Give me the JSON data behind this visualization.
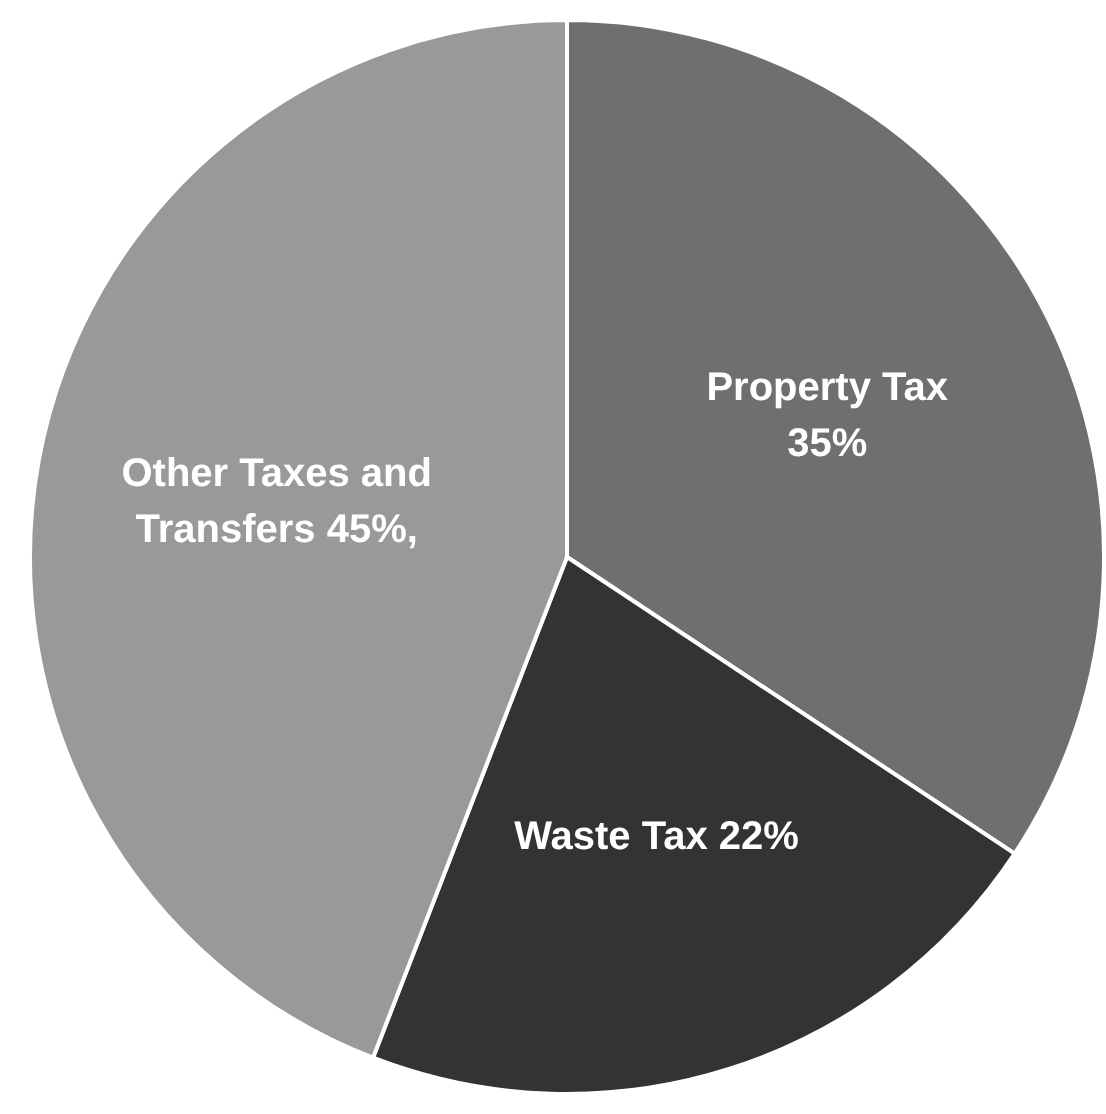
{
  "chart_data": {
    "type": "pie",
    "categories": [
      "Property Tax",
      "Waste Tax",
      "Other Taxes and Transfers"
    ],
    "values": [
      35,
      22,
      45
    ],
    "colors": [
      "#6f6f6f",
      "#333333",
      "#999999"
    ],
    "value_labels": [
      "35%",
      "22%",
      "45%,"
    ],
    "legend": false
  }
}
